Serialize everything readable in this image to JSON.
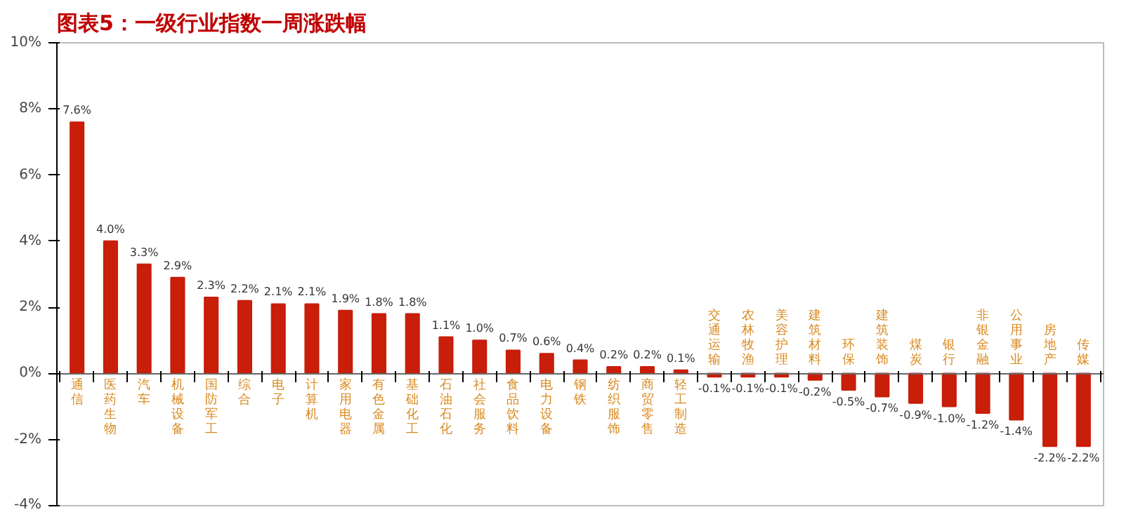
{
  "chart_data": {
    "type": "bar",
    "title": "图表5：一级行业指数一周涨跌幅",
    "categories": [
      "通信",
      "医药生物",
      "汽车",
      "机械设备",
      "国防军工",
      "综合",
      "电子",
      "计算机",
      "家用电器",
      "有色金属",
      "基础化工",
      "石油石化",
      "社会服务",
      "食品饮料",
      "电力设备",
      "钢铁",
      "纺织服饰",
      "商贸零售",
      "轻工制造",
      "交通运输",
      "农林牧渔",
      "美容护理",
      "建筑材料",
      "环保",
      "建筑装饰",
      "煤炭",
      "银行",
      "非银金融",
      "公用事业",
      "房地产",
      "传媒"
    ],
    "values": [
      7.6,
      4.0,
      3.3,
      2.9,
      2.3,
      2.2,
      2.1,
      2.1,
      1.9,
      1.8,
      1.8,
      1.1,
      1.0,
      0.7,
      0.6,
      0.4,
      0.2,
      0.2,
      0.1,
      -0.1,
      -0.1,
      -0.1,
      -0.2,
      -0.5,
      -0.7,
      -0.9,
      -1.0,
      -1.2,
      -1.4,
      -2.2,
      -2.2
    ],
    "value_labels": [
      "7.6%",
      "4.0%",
      "3.3%",
      "2.9%",
      "2.3%",
      "2.2%",
      "2.1%",
      "2.1%",
      "1.9%",
      "1.8%",
      "1.8%",
      "1.1%",
      "1.0%",
      "0.7%",
      "0.6%",
      "0.4%",
      "0.2%",
      "0.2%",
      "0.1%",
      "-0.1%",
      "-0.1%",
      "-0.1%",
      "-0.2%",
      "-0.5%",
      "-0.7%",
      "-0.9%",
      "-1.0%",
      "-1.2%",
      "-1.4%",
      "-2.2%",
      "-2.2%"
    ],
    "color": "#c81e0a",
    "ylim": [
      -4,
      10
    ],
    "yticks": [
      {
        "value": -4,
        "label": "-4%"
      },
      {
        "value": -2,
        "label": "-2%"
      },
      {
        "value": 0,
        "label": "0%"
      },
      {
        "value": 2,
        "label": "2%"
      },
      {
        "value": 4,
        "label": "4%"
      },
      {
        "value": 6,
        "label": "6%"
      },
      {
        "value": 8,
        "label": "8%"
      },
      {
        "value": 10,
        "label": "10%"
      }
    ],
    "grid": false
  }
}
